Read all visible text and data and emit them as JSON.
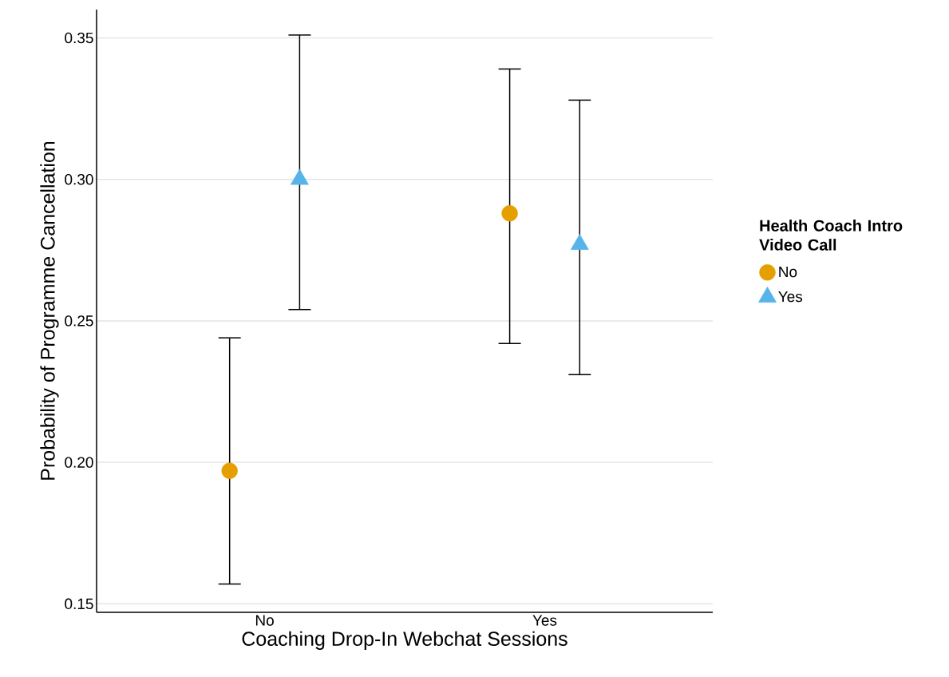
{
  "chart_data": {
    "type": "scatter",
    "xlabel": "Coaching Drop-In Webchat Sessions",
    "ylabel": "Probability of Programme Cancellation",
    "legend_title": "Health Coach Intro Video Call",
    "categories": [
      "No",
      "Yes"
    ],
    "series": [
      {
        "name": "No",
        "color": "#e69f00",
        "marker": "circle",
        "values": [
          0.197,
          0.288
        ],
        "errors": [
          [
            0.157,
            0.244
          ],
          [
            0.242,
            0.339
          ]
        ]
      },
      {
        "name": "Yes",
        "color": "#56b4e9",
        "marker": "triangle",
        "values": [
          0.3,
          0.277
        ],
        "errors": [
          [
            0.254,
            0.351
          ],
          [
            0.231,
            0.328
          ]
        ]
      }
    ],
    "ylim": [
      0.147,
      0.36
    ],
    "yticks": [
      {
        "value": 0.15,
        "label": "0.15"
      },
      {
        "value": 0.2,
        "label": "0.20"
      },
      {
        "value": 0.25,
        "label": "0.25"
      },
      {
        "value": 0.3,
        "label": "0.30"
      },
      {
        "value": 0.35,
        "label": "0.35"
      }
    ],
    "grid": "y",
    "legend": "right"
  }
}
